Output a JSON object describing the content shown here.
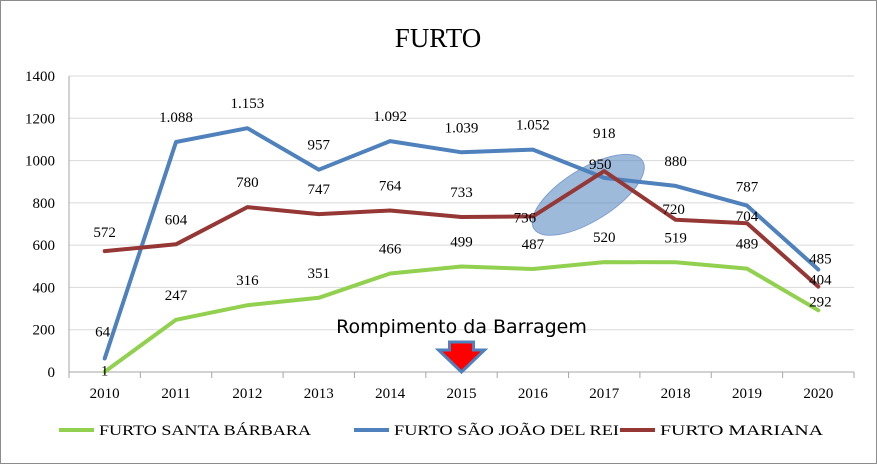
{
  "chart_data": {
    "type": "line",
    "title": "FURTO",
    "xlabel": "",
    "ylabel": "",
    "ylim": [
      0,
      1400
    ],
    "yticks": [
      "0",
      "200",
      "400",
      "600",
      "800",
      "1000",
      "1200",
      "1400"
    ],
    "x": [
      "2010",
      "2011",
      "2012",
      "2013",
      "2014",
      "2015",
      "2016",
      "2017",
      "2018",
      "2019",
      "2020"
    ],
    "grid": "horizontal",
    "legend": "bottom",
    "series": [
      {
        "name": "FURTO SANTA BÁRBARA",
        "color": "#92d050",
        "values": [
          1,
          247,
          316,
          351,
          466,
          499,
          487,
          520,
          519,
          489,
          292
        ],
        "labels": [
          "1",
          "247",
          "316",
          "351",
          "466",
          "499",
          "487",
          "520",
          "519",
          "489",
          "292"
        ]
      },
      {
        "name": "FURTO SÃO JOÃO DEL REI",
        "color": "#4f81bd",
        "values": [
          64,
          1088,
          1153,
          957,
          1092,
          1039,
          1052,
          918,
          880,
          787,
          485
        ],
        "labels": [
          "64",
          "1.088",
          "1.153",
          "957",
          "1.092",
          "1.039",
          "1.052",
          "918",
          "880",
          "787",
          "485"
        ]
      },
      {
        "name": "FURTO MARIANA",
        "color": "#953735",
        "values": [
          572,
          604,
          780,
          747,
          764,
          733,
          736,
          950,
          720,
          704,
          404
        ],
        "labels": [
          "572",
          "604",
          "780",
          "747",
          "764",
          "733",
          "736",
          "950",
          "720",
          "704",
          "404"
        ]
      }
    ],
    "annotation": {
      "text": "Rompimento da Barragem",
      "at_x": "2015",
      "arrow_colors": {
        "fill": "#ff0000",
        "border": "#4f81bd"
      }
    },
    "highlight": {
      "description": "ellipse",
      "around_x": "2017",
      "color": "#4f81bd"
    }
  }
}
